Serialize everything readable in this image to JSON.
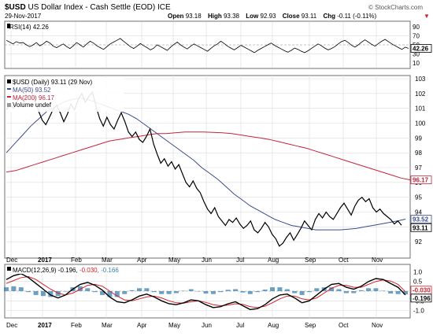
{
  "header": {
    "symbol": "$USD",
    "name": "US Dollar Index - Cash Settle (EOD)",
    "exchange": "ICE",
    "date": "29-Nov-2017",
    "watermark": "© StockCharts.com",
    "open_label": "Open",
    "open": "93.18",
    "high_label": "High",
    "high": "93.38",
    "low_label": "Low",
    "low": "92.93",
    "close_label": "Close",
    "close": "93.11",
    "chg_label": "Chg",
    "chg": "-0.11 (-0.11%)",
    "chg_marker": "▼"
  },
  "legend": {
    "price": "$USD (Daily) 93.11 (29 Nov)",
    "ma50": "MA(50) 93.52",
    "ma200": "MA(200) 96.17",
    "volume": "Volume undef"
  },
  "rsi_legend": "RSI(14) 42.26",
  "macd_legend_prefix": "MACD(12,26,9) -0.196,",
  "macd_legend_signal": "-0.030,",
  "macd_legend_hist": "-0.166",
  "colors": {
    "price": "#000000",
    "ma50": "#3c4a8c",
    "ma200": "#c0263b",
    "macd_signal": "#d2222a",
    "histogram": "#3a7fb0",
    "axis_badge": "#ffffff"
  },
  "chart_data": [
    {
      "type": "line",
      "panel": "rsi",
      "title": "RSI(14) 42.26",
      "ylim": [
        0,
        100
      ],
      "y_ticks": [
        10,
        30,
        50,
        70,
        90
      ],
      "reference_lines": [
        30,
        50,
        70
      ],
      "last_value": 42.26,
      "series": [
        {
          "name": "RSI(14)",
          "values": [
            60,
            56,
            52,
            57,
            54,
            55,
            50,
            46,
            50,
            55,
            48,
            52,
            58,
            54,
            47,
            44,
            48,
            52,
            46,
            42,
            48,
            55,
            50,
            45,
            52,
            58,
            54,
            48,
            44,
            40,
            46,
            52,
            56,
            60,
            64,
            58,
            52,
            46,
            42,
            47,
            53,
            48,
            44,
            39,
            43,
            50,
            46,
            42,
            38,
            45,
            51,
            56,
            50,
            45,
            41,
            47,
            52,
            48,
            44,
            40,
            36,
            42,
            48,
            52,
            58,
            53,
            47,
            43,
            39,
            44,
            49,
            45,
            41,
            37,
            33,
            38,
            42,
            46,
            50,
            54,
            49,
            45,
            41,
            37,
            34,
            38,
            43,
            40,
            36,
            33,
            37,
            42,
            47,
            52,
            48,
            43,
            39,
            42,
            46,
            52,
            57,
            60,
            55,
            49,
            45,
            50,
            56,
            61,
            56,
            51,
            47,
            53,
            58,
            62,
            57,
            52,
            48,
            44,
            40,
            45,
            42.26
          ]
        }
      ]
    },
    {
      "type": "line",
      "panel": "price",
      "title": "$USD (Daily) 93.11 (29 Nov)",
      "x_ticks": [
        "Dec",
        "2017",
        "Feb",
        "Mar",
        "Apr",
        "May",
        "Jun",
        "Jul",
        "Aug",
        "Sep",
        "Oct",
        "Nov"
      ],
      "ylim": [
        91,
        103
      ],
      "y_ticks": [
        92,
        93,
        94,
        95,
        96,
        97,
        98,
        99,
        100,
        101,
        102,
        103
      ],
      "last_values": {
        "price": 93.11,
        "ma50": 93.52,
        "ma200": 96.17
      },
      "series": [
        {
          "name": "$USD (Daily)",
          "values": [
            100.9,
            101.3,
            101.0,
            101.5,
            101.8,
            101.4,
            102.6,
            102.1,
            101.6,
            100.8,
            100.2,
            99.9,
            100.4,
            100.9,
            101.2,
            100.7,
            100.1,
            100.6,
            101.3,
            100.9,
            101.6,
            102.0,
            101.4,
            101.8,
            102.1,
            101.1,
            100.3,
            99.8,
            100.4,
            99.9,
            99.6,
            100.2,
            100.7,
            100.1,
            99.4,
            99.1,
            99.4,
            98.9,
            98.7,
            99.1,
            99.6,
            98.6,
            97.9,
            97.3,
            97.6,
            97.1,
            97.4,
            96.9,
            97.2,
            96.6,
            96.0,
            95.7,
            96.1,
            95.6,
            95.3,
            94.7,
            94.2,
            93.9,
            94.3,
            93.7,
            93.4,
            93.1,
            93.5,
            93.3,
            93.6,
            93.2,
            92.9,
            93.1,
            93.4,
            92.8,
            92.6,
            92.9,
            93.3,
            93.0,
            92.5,
            92.2,
            91.7,
            91.9,
            92.3,
            92.6,
            92.1,
            92.5,
            92.9,
            93.4,
            93.1,
            92.8,
            93.5,
            93.9,
            93.6,
            94.0,
            93.7,
            93.5,
            93.9,
            94.3,
            94.6,
            94.2,
            93.8,
            94.4,
            94.8,
            95.0,
            94.7,
            94.9,
            94.3,
            94.0,
            94.2,
            93.9,
            93.7,
            93.5,
            93.2,
            93.4,
            93.11
          ]
        },
        {
          "name": "MA(50)",
          "values": [
            98.0,
            98.6,
            99.2,
            99.8,
            100.3,
            100.8,
            101.1,
            101.4,
            101.6,
            101.7,
            101.6,
            101.4,
            101.2,
            101.0,
            100.8,
            100.6,
            100.3,
            99.9,
            99.5,
            99.1,
            98.7,
            98.3,
            97.9,
            97.5,
            97.0,
            96.6,
            96.2,
            95.7,
            95.2,
            94.8,
            94.4,
            94.1,
            93.8,
            93.5,
            93.3,
            93.1,
            93.0,
            92.9,
            92.8,
            92.8,
            92.8,
            92.8,
            92.85,
            92.9,
            93.0,
            93.1,
            93.2,
            93.3,
            93.4,
            93.52
          ]
        },
        {
          "name": "MA(200)",
          "values": [
            96.7,
            96.8,
            97.0,
            97.2,
            97.4,
            97.6,
            97.8,
            98.0,
            98.2,
            98.4,
            98.6,
            98.8,
            98.9,
            99.0,
            99.1,
            99.2,
            99.3,
            99.3,
            99.35,
            99.4,
            99.4,
            99.4,
            99.38,
            99.35,
            99.3,
            99.2,
            99.1,
            99.0,
            98.9,
            98.75,
            98.6,
            98.45,
            98.3,
            98.1,
            97.9,
            97.7,
            97.5,
            97.3,
            97.1,
            96.9,
            96.7,
            96.5,
            96.3,
            96.17
          ]
        }
      ]
    },
    {
      "type": "line",
      "panel": "macd",
      "title": "MACD(12,26,9) -0.196, -0.030, -0.166",
      "ylim": [
        -1.3,
        1.3
      ],
      "y_ticks": [
        -1.0,
        -0.5,
        0.5,
        1.0
      ],
      "last_values": {
        "macd": -0.196,
        "signal": -0.03,
        "histogram": -0.166
      },
      "series": [
        {
          "name": "MACD",
          "values": [
            0.6,
            0.8,
            0.9,
            0.7,
            0.4,
            0.1,
            -0.2,
            -0.35,
            -0.2,
            0.1,
            0.35,
            0.45,
            0.3,
            0.05,
            -0.3,
            -0.55,
            -0.6,
            -0.45,
            -0.25,
            -0.15,
            -0.3,
            -0.5,
            -0.65,
            -0.7,
            -0.6,
            -0.45,
            -0.5,
            -0.7,
            -0.85,
            -0.8,
            -0.65,
            -0.55,
            -0.75,
            -0.95,
            -0.9,
            -0.7,
            -0.4,
            -0.2,
            -0.15,
            -0.35,
            -0.6,
            -0.5,
            -0.2,
            0.1,
            0.35,
            0.4,
            0.2,
            0.1,
            0.25,
            0.5,
            0.65,
            0.6,
            0.4,
            0.2,
            -0.196
          ]
        },
        {
          "name": "Signal",
          "values": [
            0.4,
            0.55,
            0.7,
            0.75,
            0.6,
            0.35,
            0.1,
            -0.1,
            -0.2,
            -0.1,
            0.1,
            0.3,
            0.35,
            0.25,
            0.0,
            -0.25,
            -0.45,
            -0.5,
            -0.4,
            -0.3,
            -0.25,
            -0.35,
            -0.5,
            -0.6,
            -0.62,
            -0.55,
            -0.5,
            -0.58,
            -0.7,
            -0.75,
            -0.72,
            -0.65,
            -0.68,
            -0.8,
            -0.85,
            -0.78,
            -0.6,
            -0.4,
            -0.25,
            -0.25,
            -0.4,
            -0.45,
            -0.35,
            -0.1,
            0.15,
            0.3,
            0.3,
            0.2,
            0.2,
            0.35,
            0.5,
            0.58,
            0.52,
            0.35,
            -0.03
          ]
        }
      ]
    }
  ]
}
